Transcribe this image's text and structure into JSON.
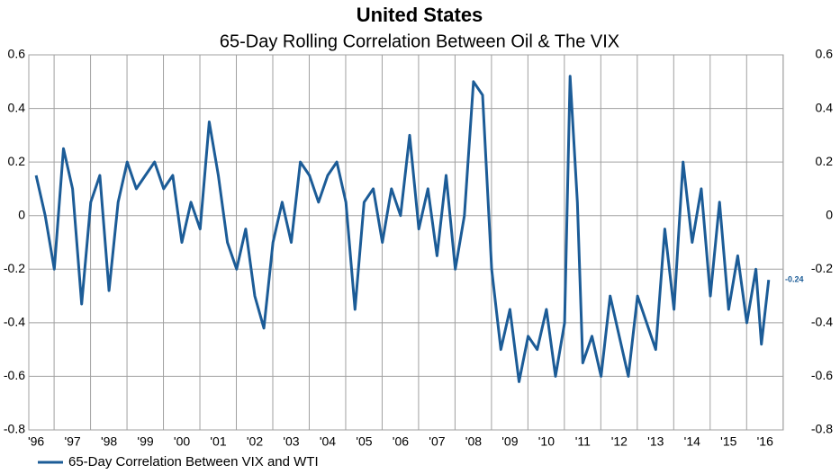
{
  "chart_data": {
    "type": "line",
    "title": "United States",
    "subtitle": "65-Day Rolling Correlation Between Oil & The VIX",
    "annotation": "-0.24",
    "x": [
      1996.0,
      1996.25,
      1996.5,
      1996.75,
      1997.0,
      1997.25,
      1997.5,
      1997.75,
      1998.0,
      1998.25,
      1998.5,
      1998.75,
      1999.0,
      1999.25,
      1999.5,
      1999.75,
      2000.0,
      2000.25,
      2000.5,
      2000.75,
      2001.0,
      2001.25,
      2001.5,
      2001.75,
      2002.0,
      2002.25,
      2002.5,
      2002.75,
      2003.0,
      2003.25,
      2003.5,
      2003.75,
      2004.0,
      2004.25,
      2004.5,
      2004.75,
      2005.0,
      2005.25,
      2005.5,
      2005.75,
      2006.0,
      2006.25,
      2006.5,
      2006.75,
      2007.0,
      2007.25,
      2007.5,
      2007.75,
      2008.0,
      2008.25,
      2008.5,
      2008.75,
      2009.0,
      2009.25,
      2009.5,
      2009.75,
      2010.0,
      2010.25,
      2010.5,
      2010.65,
      2010.85,
      2011.0,
      2011.25,
      2011.5,
      2011.75,
      2012.0,
      2012.25,
      2012.5,
      2012.75,
      2013.0,
      2013.25,
      2013.5,
      2013.75,
      2014.0,
      2014.25,
      2014.5,
      2014.75,
      2015.0,
      2015.25,
      2015.5,
      2015.75,
      2015.9,
      2016.1
    ],
    "series": [
      {
        "name": "65-Day Correlation Between VIX and WTI",
        "color": "#1c5c97",
        "values": [
          0.15,
          0.0,
          -0.2,
          0.25,
          0.1,
          -0.33,
          0.05,
          0.15,
          -0.28,
          0.05,
          0.2,
          0.1,
          0.15,
          0.2,
          0.1,
          0.15,
          -0.1,
          0.05,
          -0.05,
          0.35,
          0.15,
          -0.1,
          -0.2,
          -0.05,
          -0.3,
          -0.42,
          -0.1,
          0.05,
          -0.1,
          0.2,
          0.15,
          0.05,
          0.15,
          0.2,
          0.05,
          -0.35,
          0.05,
          0.1,
          -0.1,
          0.1,
          0.0,
          0.3,
          -0.05,
          0.1,
          -0.15,
          0.15,
          -0.2,
          0.0,
          0.5,
          0.45,
          -0.2,
          -0.5,
          -0.35,
          -0.62,
          -0.45,
          -0.5,
          -0.35,
          -0.6,
          -0.4,
          0.52,
          0.05,
          -0.55,
          -0.45,
          -0.6,
          -0.3,
          -0.45,
          -0.6,
          -0.3,
          -0.4,
          -0.5,
          -0.05,
          -0.35,
          0.2,
          -0.1,
          0.1,
          -0.3,
          0.05,
          -0.35,
          -0.15,
          -0.4,
          -0.2,
          -0.48,
          -0.24
        ]
      }
    ],
    "xlim": [
      1995.8,
      2016.5
    ],
    "xticks": [
      {
        "value": 1996,
        "label": "'96"
      },
      {
        "value": 1997,
        "label": "'97"
      },
      {
        "value": 1998,
        "label": "'98"
      },
      {
        "value": 1999,
        "label": "'99"
      },
      {
        "value": 2000,
        "label": "'00"
      },
      {
        "value": 2001,
        "label": "'01"
      },
      {
        "value": 2002,
        "label": "'02"
      },
      {
        "value": 2003,
        "label": "'03"
      },
      {
        "value": 2004,
        "label": "'04"
      },
      {
        "value": 2005,
        "label": "'05"
      },
      {
        "value": 2006,
        "label": "'06"
      },
      {
        "value": 2007,
        "label": "'07"
      },
      {
        "value": 2008,
        "label": "'08"
      },
      {
        "value": 2009,
        "label": "'09"
      },
      {
        "value": 2010,
        "label": "'10"
      },
      {
        "value": 2011,
        "label": "'11"
      },
      {
        "value": 2012,
        "label": "'12"
      },
      {
        "value": 2013,
        "label": "'13"
      },
      {
        "value": 2014,
        "label": "'14"
      },
      {
        "value": 2015,
        "label": "'15"
      },
      {
        "value": 2016,
        "label": "'16"
      }
    ],
    "ylim": [
      -0.8,
      0.6
    ],
    "yticks": [
      0.6,
      0.4,
      0.2,
      0,
      -0.2,
      -0.4,
      -0.6,
      -0.8
    ],
    "y2lim": [
      -0.8,
      0.6
    ],
    "y2ticks": [
      0.6,
      0.4,
      0.2,
      0,
      -0.2,
      -0.4,
      -0.6,
      -0.8
    ],
    "grid": true,
    "legend": "bottom-left"
  }
}
